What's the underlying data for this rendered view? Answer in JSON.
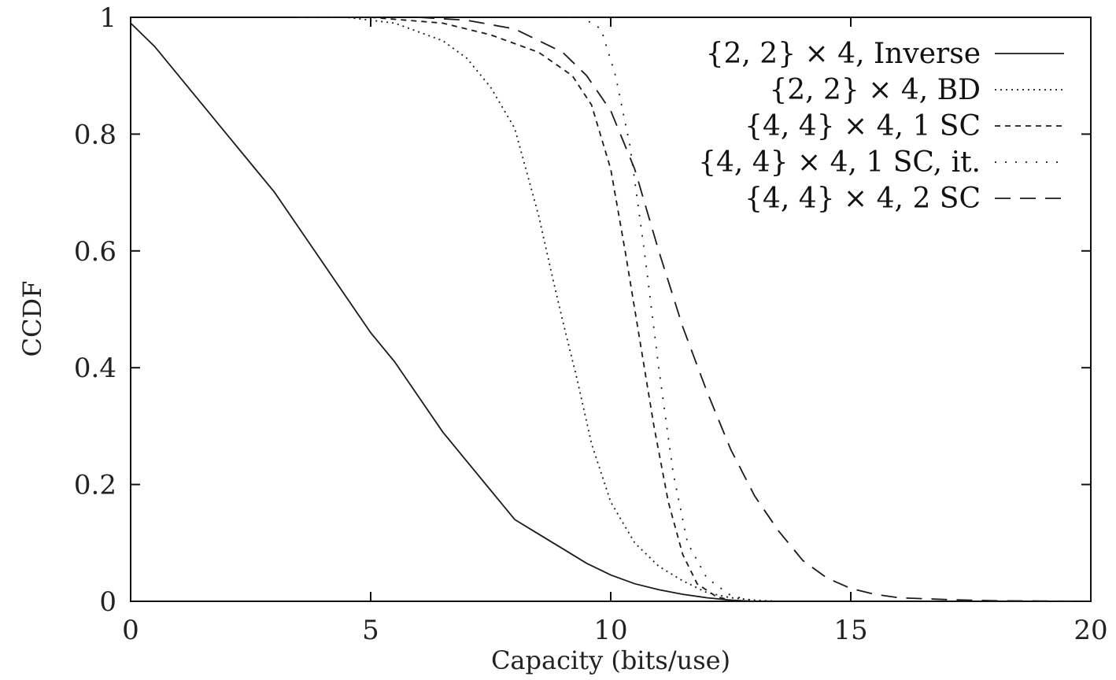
{
  "chart_data": {
    "type": "line",
    "title": "",
    "xlabel": "Capacity (bits/use)",
    "ylabel": "CCDF",
    "xlim": [
      0,
      20
    ],
    "ylim": [
      0,
      1
    ],
    "xticks": [
      0,
      5,
      10,
      15,
      20
    ],
    "xtick_labels": [
      "0",
      "5",
      "10",
      "15",
      "20"
    ],
    "yticks": [
      0,
      0.2,
      0.4,
      0.6,
      0.8,
      1
    ],
    "ytick_labels": [
      "0",
      "0.2",
      "0.4",
      "0.6",
      "0.8",
      "1"
    ],
    "grid": false,
    "legend_position": "top-right",
    "series": [
      {
        "name": "{2, 2} × 4, Inverse",
        "style": "solid",
        "x": [
          0,
          0.5,
          1,
          1.5,
          2,
          2.5,
          3,
          3.5,
          4,
          4.5,
          5,
          5.5,
          6,
          6.5,
          7,
          7.5,
          8,
          8.5,
          9,
          9.5,
          10,
          10.5,
          11,
          11.5,
          12,
          12.5,
          13
        ],
        "y": [
          0.99,
          0.95,
          0.9,
          0.85,
          0.8,
          0.75,
          0.7,
          0.64,
          0.58,
          0.52,
          0.46,
          0.41,
          0.35,
          0.29,
          0.24,
          0.19,
          0.14,
          0.115,
          0.09,
          0.065,
          0.045,
          0.03,
          0.02,
          0.012,
          0.006,
          0.002,
          0
        ]
      },
      {
        "name": "{2, 2} × 4, BD",
        "style": "dotted",
        "x": [
          3.5,
          4.5,
          5.5,
          6.5,
          7.0,
          7.5,
          8.0,
          8.5,
          8.8,
          9.0,
          9.3,
          9.6,
          10.0,
          10.5,
          11.0,
          11.5,
          12.0,
          12.5,
          13.0,
          13.5
        ],
        "y": [
          1.0,
          1.0,
          0.99,
          0.96,
          0.93,
          0.88,
          0.81,
          0.66,
          0.55,
          0.48,
          0.38,
          0.27,
          0.17,
          0.1,
          0.06,
          0.035,
          0.015,
          0.006,
          0.002,
          0
        ]
      },
      {
        "name": "{4, 4} × 4, 1 SC",
        "style": "short-dash",
        "x": [
          3.5,
          5,
          6.5,
          7.5,
          8.5,
          9.2,
          9.6,
          10.0,
          10.3,
          10.6,
          10.9,
          11.2,
          11.5,
          11.8,
          12.2,
          12.6
        ],
        "y": [
          1.0,
          1.0,
          0.99,
          0.97,
          0.94,
          0.9,
          0.85,
          0.74,
          0.6,
          0.45,
          0.3,
          0.17,
          0.08,
          0.03,
          0.008,
          0
        ]
      },
      {
        "name": "{4, 4} × 4, 1 SC, it.",
        "style": "sparse-dotted",
        "x": [
          8.5,
          9.4,
          9.8,
          10.1,
          10.4,
          10.7,
          11.0,
          11.3,
          11.6,
          12.0,
          12.5,
          13.0
        ],
        "y": [
          1.0,
          1.0,
          0.98,
          0.9,
          0.78,
          0.6,
          0.4,
          0.22,
          0.1,
          0.04,
          0.01,
          0
        ]
      },
      {
        "name": "{4, 4} × 4, 2 SC",
        "style": "long-dash",
        "x": [
          6,
          7,
          8,
          9,
          9.5,
          10,
          10.5,
          11,
          11.5,
          12,
          12.5,
          13,
          13.5,
          14,
          14.5,
          15,
          15.5,
          16,
          17,
          18,
          19,
          20
        ],
        "y": [
          1.0,
          0.995,
          0.98,
          0.94,
          0.9,
          0.84,
          0.74,
          0.6,
          0.47,
          0.36,
          0.26,
          0.18,
          0.12,
          0.07,
          0.04,
          0.022,
          0.012,
          0.006,
          0.003,
          0.001,
          0.0005,
          0
        ]
      }
    ]
  }
}
